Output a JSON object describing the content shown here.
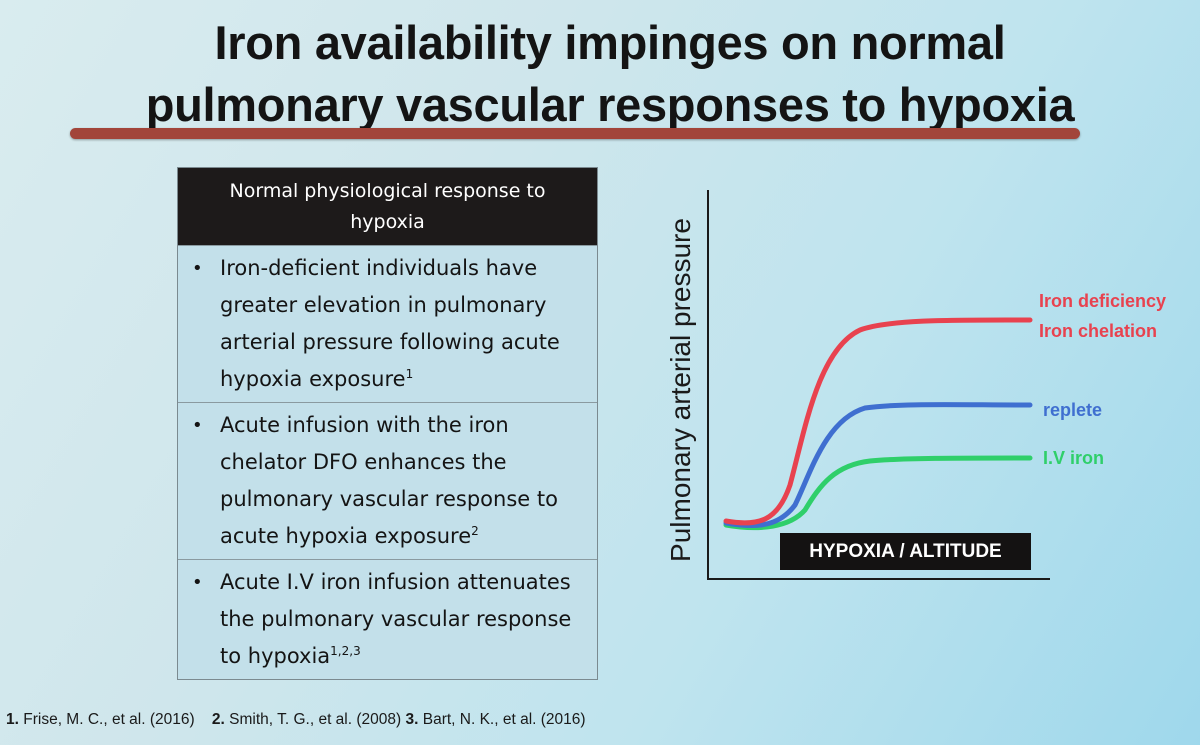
{
  "title": {
    "line1": "Iron availability impinges on normal",
    "line2": "pulmonary vascular responses to hypoxia"
  },
  "table": {
    "header": "Normal physiological response to hypoxia",
    "rows": [
      {
        "text": "Iron-deficient individuals have greater elevation in pulmonary arterial pressure following acute hypoxia exposure",
        "sup": "1"
      },
      {
        "text": "Acute infusion with the iron chelator DFO enhances the pulmonary vascular response to acute hypoxia exposure",
        "sup": "2"
      },
      {
        "text": "Acute I.V iron infusion attenuates the pulmonary vascular response to hypoxia",
        "sup": "1,2,3"
      }
    ],
    "bullet": "•"
  },
  "graph": {
    "ylabel": "Pulmonary arterial pressure",
    "xlabel": "HYPOXIA / ALTITUDE",
    "legend": {
      "iron_deficiency": "Iron deficiency",
      "iron_chelation": "Iron chelation",
      "replete": "replete",
      "iv_iron": "I.V iron"
    },
    "colors": {
      "iron_deficiency": "#e8424f",
      "replete": "#3f6fd0",
      "iv_iron": "#2fcf6a"
    }
  },
  "references": [
    {
      "num": "1.",
      "text": "Frise, M. C., et al. (2016)"
    },
    {
      "num": "2.",
      "text": "Smith, T. G., et al. (2008)"
    },
    {
      "num": "3.",
      "text": "Bart, N. K., et al. (2016)"
    }
  ]
}
